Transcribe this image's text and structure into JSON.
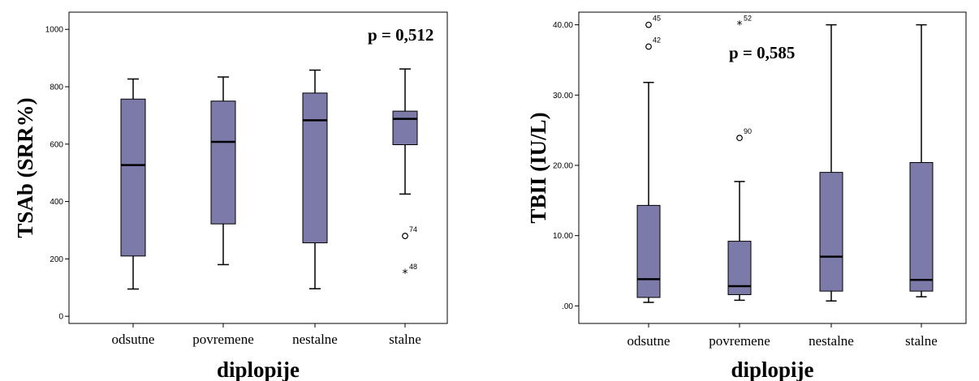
{
  "chart_data": [
    {
      "type": "box",
      "categories": [
        "odsutne",
        "povremene",
        "nestalne",
        "stalne"
      ],
      "xlabel": "diplopije",
      "ylabel": "TSAb (SRR%)",
      "annotation": "p = 0,512",
      "yticks": [
        "0",
        "200",
        "400",
        "600",
        "800",
        "1000"
      ],
      "ylim": [
        -25,
        1060
      ],
      "grid": false,
      "boxes": [
        {
          "category": "odsutne",
          "min": 95,
          "q1": 210,
          "median": 527,
          "q3": 757,
          "max": 827
        },
        {
          "category": "povremene",
          "min": 180,
          "q1": 322,
          "median": 608,
          "q3": 750,
          "max": 834
        },
        {
          "category": "nestalne",
          "min": 96,
          "q1": 256,
          "median": 683,
          "q3": 778,
          "max": 858
        },
        {
          "category": "stalne",
          "min": 426,
          "q1": 598,
          "median": 688,
          "q3": 715,
          "max": 862
        }
      ],
      "outliers": [
        {
          "category": "stalne",
          "value": 280,
          "label": "74",
          "marker": "circle"
        },
        {
          "category": "stalne",
          "value": 150,
          "label": "48",
          "marker": "star"
        }
      ]
    },
    {
      "type": "box",
      "categories": [
        "odsutne",
        "povremene",
        "nestalne",
        "stalne"
      ],
      "xlabel": "diplopije",
      "ylabel": "TBII (IU/L)",
      "annotation": "p = 0,585",
      "yticks": [
        ".00",
        "10.00",
        "20.00",
        "30.00",
        "40.00"
      ],
      "ylim": [
        -2.5,
        41.8
      ],
      "grid": false,
      "boxes": [
        {
          "category": "odsutne",
          "min": 0.5,
          "q1": 1.2,
          "median": 3.8,
          "q3": 14.3,
          "max": 31.8
        },
        {
          "category": "povremene",
          "min": 0.8,
          "q1": 1.6,
          "median": 2.8,
          "q3": 9.2,
          "max": 17.7
        },
        {
          "category": "nestalne",
          "min": 0.7,
          "q1": 2.1,
          "median": 7.0,
          "q3": 19.0,
          "max": 40.0
        },
        {
          "category": "stalne",
          "min": 1.3,
          "q1": 2.1,
          "median": 3.7,
          "q3": 20.4,
          "max": 40.0
        }
      ],
      "outliers": [
        {
          "category": "odsutne",
          "value": 40.0,
          "label": "45",
          "marker": "circle"
        },
        {
          "category": "odsutne",
          "value": 36.9,
          "label": "42",
          "marker": "circle"
        },
        {
          "category": "povremene",
          "value": 40.0,
          "label": "52",
          "marker": "star"
        },
        {
          "category": "povremene",
          "value": 23.9,
          "label": "90",
          "marker": "circle"
        }
      ]
    }
  ]
}
